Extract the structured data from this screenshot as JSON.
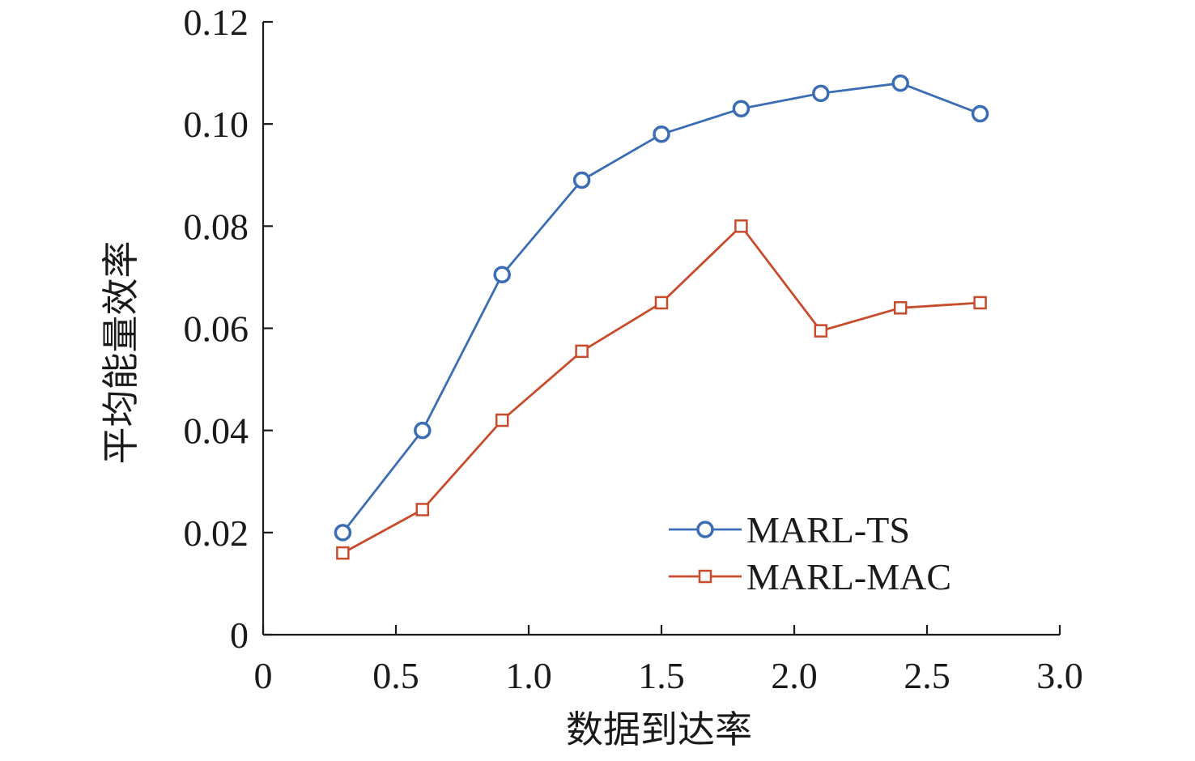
{
  "chart_data": {
    "type": "line",
    "title": "",
    "xlabel": "数据到达率",
    "ylabel": "平均能量效率",
    "xlim": [
      0,
      3.0
    ],
    "ylim": [
      0,
      0.12
    ],
    "x_ticks": [
      "0",
      "0.5",
      "1.0",
      "1.5",
      "2.0",
      "2.5",
      "3.0"
    ],
    "y_ticks": [
      "0",
      "0.02",
      "0.04",
      "0.06",
      "0.08",
      "0.10",
      "0.12"
    ],
    "x": [
      0.3,
      0.6,
      0.9,
      1.2,
      1.5,
      1.8,
      2.1,
      2.4,
      2.7
    ],
    "series": [
      {
        "name": "MARL-TS",
        "color": "#3b6db5",
        "marker": "circle",
        "values": [
          0.02,
          0.04,
          0.0705,
          0.089,
          0.098,
          0.103,
          0.106,
          0.108,
          0.102
        ]
      },
      {
        "name": "MARL-MAC",
        "color": "#c84b2c",
        "marker": "square",
        "values": [
          0.016,
          0.0245,
          0.042,
          0.0555,
          0.065,
          0.08,
          0.0595,
          0.064,
          0.065
        ]
      }
    ],
    "grid": false,
    "legend_position": "bottom-right"
  }
}
